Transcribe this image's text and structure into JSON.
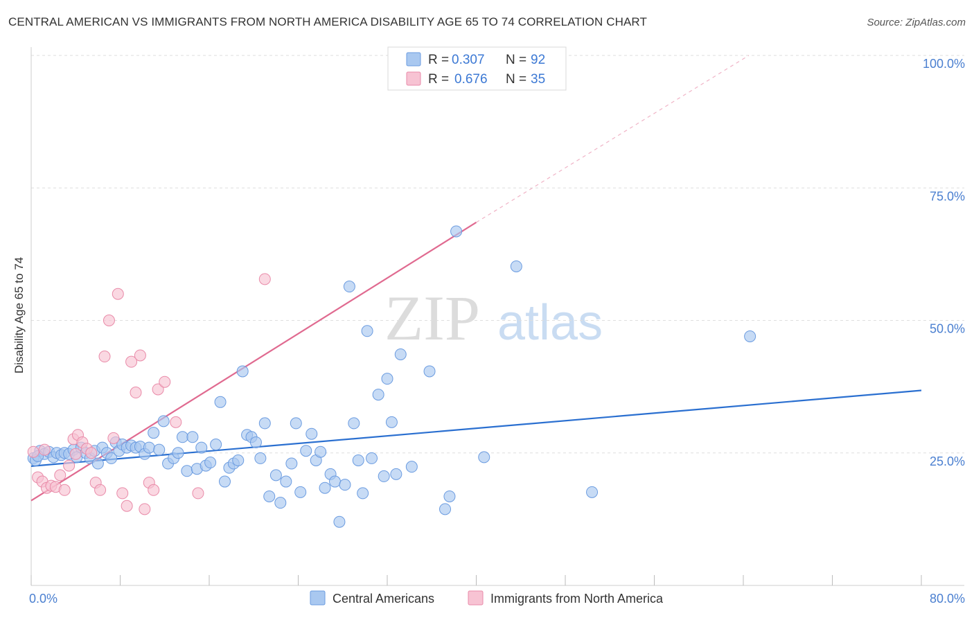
{
  "title": "CENTRAL AMERICAN VS IMMIGRANTS FROM NORTH AMERICA DISABILITY AGE 65 TO 74 CORRELATION CHART",
  "source": "Source: ZipAtlas.com",
  "watermark": {
    "zip": "ZIP",
    "atlas": "atlas"
  },
  "legend": {
    "r_label": "R =",
    "n_label": "N =",
    "entries": [
      {
        "name": "Central Americans",
        "r": "0.307",
        "n": "92",
        "color": "#a9c8f0",
        "stroke": "#6a9be0"
      },
      {
        "name": "Immigrants from North America",
        "r": "0.676",
        "n": "35",
        "color": "#f7c3d3",
        "stroke": "#e98aa8"
      }
    ]
  },
  "chart_data": {
    "type": "scatter",
    "xlabel": "",
    "ylabel": "Disability Age 65 to 74",
    "xlim": [
      0,
      80
    ],
    "ylim": [
      0,
      100
    ],
    "x_tick_labels": [
      "0.0%",
      "80.0%"
    ],
    "y_ticks": [
      25,
      50,
      75,
      100
    ],
    "y_tick_labels": [
      "25.0%",
      "50.0%",
      "75.0%",
      "100.0%"
    ],
    "grid": true,
    "series": [
      {
        "name": "Central Americans",
        "color": "#a9c8f0",
        "stroke": "#6a9be0",
        "line_color": "#2a6fd0",
        "trend": {
          "x": [
            0,
            80
          ],
          "y": [
            22.5,
            36.8
          ],
          "dashed_to": null
        },
        "points": [
          [
            0.2,
            24.0
          ],
          [
            0.4,
            23.6
          ],
          [
            0.8,
            25.4
          ],
          [
            1.2,
            24.8
          ],
          [
            1.6,
            25.2
          ],
          [
            2.0,
            24.2
          ],
          [
            2.3,
            25.0
          ],
          [
            2.7,
            24.6
          ],
          [
            3.0,
            25.0
          ],
          [
            3.4,
            24.8
          ],
          [
            3.8,
            25.6
          ],
          [
            4.1,
            24.2
          ],
          [
            4.5,
            26.0
          ],
          [
            4.9,
            25.0
          ],
          [
            5.3,
            24.0
          ],
          [
            5.7,
            25.4
          ],
          [
            6.0,
            23.0
          ],
          [
            6.4,
            26.0
          ],
          [
            6.8,
            25.0
          ],
          [
            7.2,
            24.0
          ],
          [
            7.6,
            27.0
          ],
          [
            7.9,
            25.4
          ],
          [
            8.2,
            26.6
          ],
          [
            8.6,
            26.0
          ],
          [
            9.0,
            26.4
          ],
          [
            9.4,
            26.0
          ],
          [
            9.8,
            26.2
          ],
          [
            10.2,
            24.8
          ],
          [
            10.6,
            26.0
          ],
          [
            11.0,
            28.8
          ],
          [
            11.5,
            25.6
          ],
          [
            11.9,
            31.0
          ],
          [
            12.3,
            23.0
          ],
          [
            12.8,
            24.0
          ],
          [
            13.2,
            25.0
          ],
          [
            13.6,
            28.0
          ],
          [
            14.0,
            21.6
          ],
          [
            14.5,
            28.0
          ],
          [
            14.9,
            22.0
          ],
          [
            15.3,
            26.0
          ],
          [
            15.7,
            22.6
          ],
          [
            16.1,
            23.2
          ],
          [
            16.6,
            26.6
          ],
          [
            17.0,
            34.6
          ],
          [
            17.4,
            19.6
          ],
          [
            17.8,
            22.2
          ],
          [
            18.2,
            23.0
          ],
          [
            18.6,
            23.6
          ],
          [
            19.0,
            40.4
          ],
          [
            19.4,
            28.4
          ],
          [
            19.8,
            28.0
          ],
          [
            20.2,
            27.0
          ],
          [
            20.6,
            24.0
          ],
          [
            21.0,
            30.6
          ],
          [
            21.4,
            16.8
          ],
          [
            22.0,
            20.8
          ],
          [
            22.4,
            15.6
          ],
          [
            22.9,
            19.6
          ],
          [
            23.4,
            23.0
          ],
          [
            23.8,
            30.6
          ],
          [
            24.2,
            17.6
          ],
          [
            24.7,
            25.4
          ],
          [
            25.2,
            28.6
          ],
          [
            25.6,
            23.6
          ],
          [
            26.0,
            25.2
          ],
          [
            26.4,
            18.4
          ],
          [
            26.9,
            21.0
          ],
          [
            27.3,
            19.6
          ],
          [
            27.7,
            12.0
          ],
          [
            28.2,
            19.0
          ],
          [
            28.6,
            56.4
          ],
          [
            29.0,
            30.6
          ],
          [
            29.4,
            23.6
          ],
          [
            29.8,
            17.4
          ],
          [
            30.2,
            48.0
          ],
          [
            30.6,
            24.0
          ],
          [
            31.2,
            36.0
          ],
          [
            31.7,
            20.6
          ],
          [
            32.0,
            39.0
          ],
          [
            32.4,
            30.8
          ],
          [
            32.8,
            21.0
          ],
          [
            33.2,
            43.6
          ],
          [
            34.2,
            22.4
          ],
          [
            35.8,
            40.4
          ],
          [
            37.2,
            14.4
          ],
          [
            37.6,
            16.8
          ],
          [
            38.2,
            66.8
          ],
          [
            40.7,
            24.2
          ],
          [
            43.6,
            60.2
          ],
          [
            50.4,
            17.6
          ],
          [
            64.6,
            47.0
          ],
          [
            0.6,
            24.4
          ]
        ]
      },
      {
        "name": "Immigrants from North America",
        "color": "#f7c3d3",
        "stroke": "#e98aa8",
        "line_color": "#e06a90",
        "trend": {
          "x": [
            0,
            40
          ],
          "y": [
            16.0,
            68.5
          ],
          "dashed_to": [
            64.5,
            100
          ]
        },
        "points": [
          [
            0.2,
            25.2
          ],
          [
            0.6,
            20.4
          ],
          [
            1.0,
            19.6
          ],
          [
            1.4,
            18.4
          ],
          [
            1.8,
            18.8
          ],
          [
            2.2,
            18.6
          ],
          [
            2.6,
            20.8
          ],
          [
            3.0,
            18.0
          ],
          [
            3.4,
            22.6
          ],
          [
            3.8,
            27.6
          ],
          [
            4.2,
            28.4
          ],
          [
            4.6,
            27.0
          ],
          [
            5.0,
            25.8
          ],
          [
            5.4,
            25.0
          ],
          [
            5.8,
            19.4
          ],
          [
            6.2,
            18.0
          ],
          [
            6.6,
            43.2
          ],
          [
            7.0,
            50.0
          ],
          [
            7.4,
            27.8
          ],
          [
            7.8,
            55.0
          ],
          [
            8.2,
            17.4
          ],
          [
            8.6,
            15.0
          ],
          [
            9.0,
            42.2
          ],
          [
            9.4,
            36.4
          ],
          [
            9.8,
            43.4
          ],
          [
            10.2,
            14.4
          ],
          [
            10.6,
            19.4
          ],
          [
            11.0,
            18.0
          ],
          [
            11.4,
            37.0
          ],
          [
            12.0,
            38.4
          ],
          [
            13.0,
            30.8
          ],
          [
            15.0,
            17.4
          ],
          [
            21.0,
            57.8
          ],
          [
            4.0,
            24.8
          ],
          [
            1.2,
            25.6
          ]
        ]
      }
    ]
  },
  "bottom_legend": [
    "Central Americans",
    "Immigrants from North America"
  ]
}
